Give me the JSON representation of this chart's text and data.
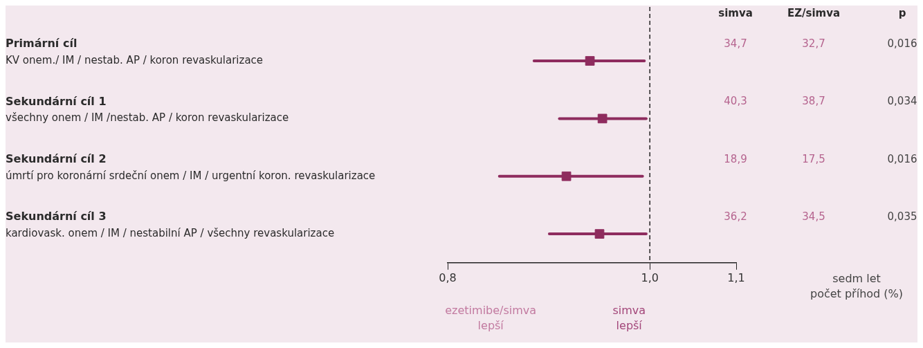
{
  "chart_data": {
    "type": "scatter",
    "orientation": "horizontal",
    "categories": [
      "Primární cíl\nKV onem./ IM / nestab. AP / koron revaskularizace",
      "Sekundární cíl 1\nvšechny onem / IM /nestab. AP / koron revaskularizace",
      "Sekundární cíl 2\númrtí pro koronární srdeční onem / IM / urgentní koron. revaskularizace",
      "Sekundární cíl 3\nkardiovask. onem / IM / nestabilní AP / všechny revaskularizace"
    ],
    "values": [
      0.936,
      0.949,
      0.912,
      0.946
    ],
    "errors": [
      [
        0.88,
        0.994
      ],
      [
        0.905,
        0.996
      ],
      [
        0.847,
        0.992
      ],
      [
        0.895,
        0.996
      ]
    ],
    "color": "#8e2c5e",
    "marker": "square",
    "log": "x",
    "xlim": [
      0.8,
      1.1
    ],
    "xticks": [
      {
        "value": 0.8,
        "label": "0,8"
      },
      {
        "value": 1.0,
        "label": "1,0"
      },
      {
        "value": 1.1,
        "label": "1,1"
      }
    ],
    "grid": false,
    "legend": false,
    "ref_lines": [
      {
        "axis": "x",
        "value": 1.0,
        "line_style": "dashed",
        "color": "#222222"
      }
    ],
    "annotations": [
      "simva",
      "EZ/simva",
      "p",
      "34,7",
      "32,7",
      "0,016",
      "40,3",
      "38,7",
      "0,034",
      "18,9",
      "17,5",
      "0,016",
      "36,2",
      "34,5",
      "0,035",
      "sedm let\npočet příhod (%)",
      "ezetimibe/simva\nlepší",
      "simva\nlepší"
    ]
  }
}
